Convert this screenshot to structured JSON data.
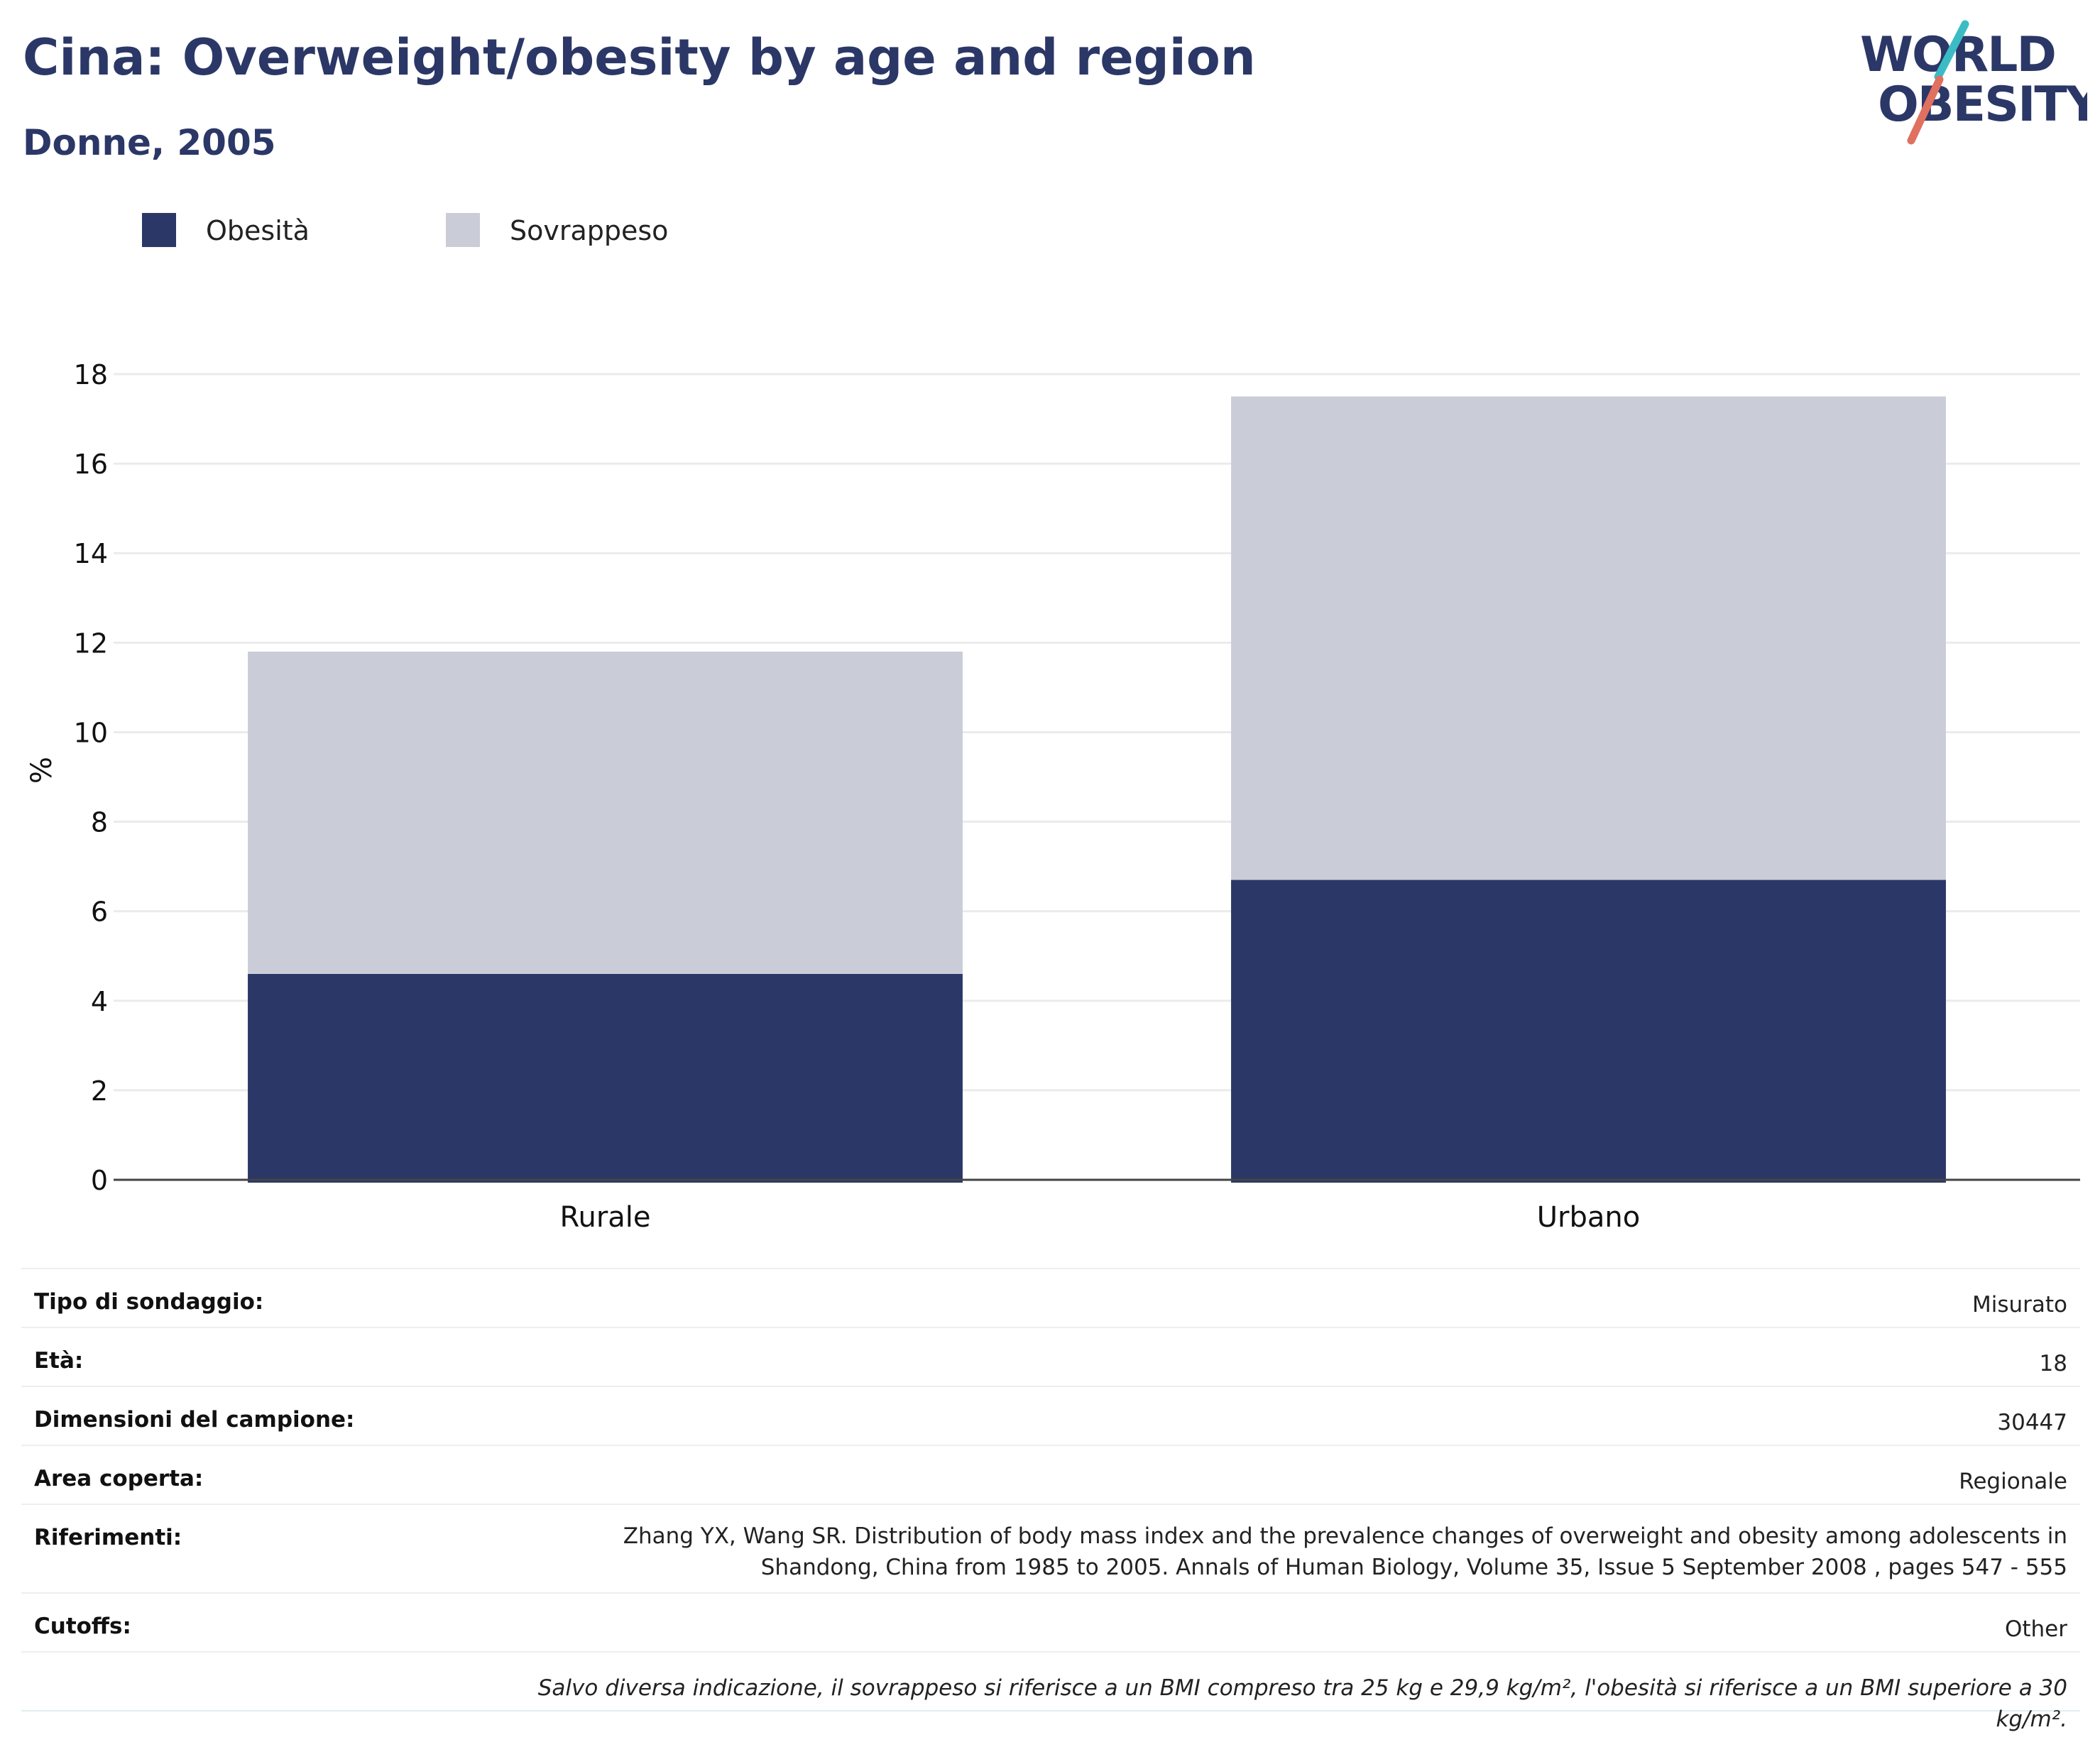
{
  "header": {
    "title": "Cina: Overweight/obesity by age and region",
    "subtitle": "Donne, 2005"
  },
  "logo": {
    "line1": "WORLD",
    "line2": "OBESITY"
  },
  "colors": {
    "obesity": "#2b3766",
    "overweight": "#cacdd8",
    "title": "#2b3766",
    "logo_teal": "#3bbcc4",
    "logo_coral": "#e0705f"
  },
  "legend": [
    {
      "label": "Obesità",
      "color": "#2b3766"
    },
    {
      "label": "Sovrappeso",
      "color": "#cacdd8"
    }
  ],
  "chart_data": {
    "type": "bar",
    "stacked": true,
    "categories": [
      "Rurale",
      "Urbano"
    ],
    "series": [
      {
        "name": "Obesità",
        "values": [
          4.6,
          6.7
        ]
      },
      {
        "name": "Sovrappeso",
        "values": [
          7.2,
          10.8
        ]
      }
    ],
    "title": "Cina: Overweight/obesity by age and region",
    "subtitle": "Donne, 2005",
    "xlabel": "",
    "ylabel": "%",
    "ylim": [
      0,
      18
    ],
    "yticks": [
      0,
      2,
      4,
      6,
      8,
      10,
      12,
      14,
      16,
      18
    ],
    "grid": true,
    "legend_position": "top-left"
  },
  "meta": [
    {
      "label": "Tipo di sondaggio:",
      "value": "Misurato"
    },
    {
      "label": "Età:",
      "value": "18"
    },
    {
      "label": "Dimensioni del campione:",
      "value": "30447"
    },
    {
      "label": "Area coperta:",
      "value": "Regionale"
    },
    {
      "label": "Riferimenti:",
      "value_lines": [
        "Zhang YX, Wang SR. Distribution of body mass index and the prevalence changes of overweight and obesity among adolescents in",
        "Shandong, China from 1985 to 2005. Annals of Human Biology, Volume 35, Issue 5 September 2008 , pages 547 - 555"
      ]
    },
    {
      "label": "Cutoffs:",
      "value": "Other"
    }
  ],
  "footnote": "Salvo diversa indicazione, il sovrappeso si riferisce a un BMI compreso tra 25 kg e 29,9 kg/m², l'obesità si riferisce a un BMI superiore a 30 kg/m²."
}
